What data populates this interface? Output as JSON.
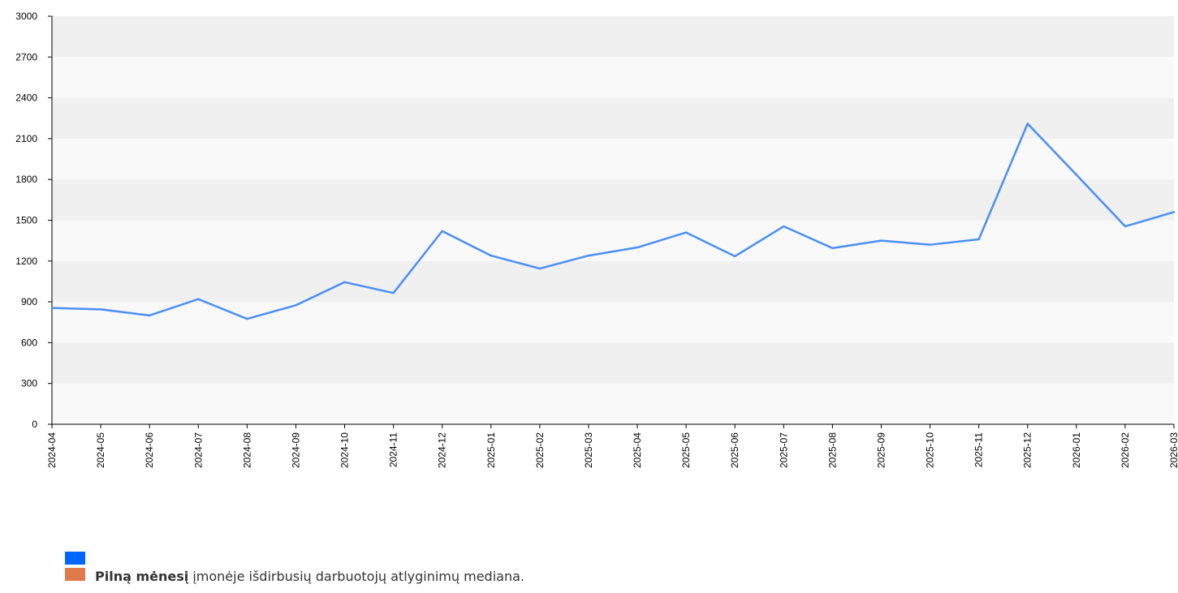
{
  "chart_data": {
    "type": "line",
    "x": [
      "2024-04",
      "2024-05",
      "2024-06",
      "2024-07",
      "2024-08",
      "2024-09",
      "2024-10",
      "2024-11",
      "2024-12",
      "2025-01",
      "2025-02",
      "2025-03",
      "2025-04",
      "2025-05",
      "2025-06",
      "2025-07",
      "2025-08",
      "2025-09",
      "2025-10",
      "2025-11",
      "2025-12",
      "2026-01",
      "2026-02",
      "2026-03"
    ],
    "series": [
      {
        "color": "#4b8ef5",
        "values": [
          855,
          845,
          800,
          920,
          775,
          875,
          1045,
          965,
          1420,
          1240,
          1145,
          1240,
          1300,
          1410,
          1235,
          1455,
          1295,
          1350,
          1320,
          1360,
          2210,
          1835,
          1455,
          1560
        ]
      }
    ],
    "ylim": [
      0,
      3000
    ],
    "yticks": [
      "0",
      "300",
      "600",
      "900",
      "1200",
      "1500",
      "1800",
      "2100",
      "2400",
      "2700",
      "3000"
    ],
    "grid": true,
    "band_colors": [
      "#f9f9f9",
      "#f0f0f0"
    ],
    "axis_color": "#000000"
  },
  "legend": {
    "items": [
      {
        "color": "#0066ff",
        "bold": "",
        "text": ""
      },
      {
        "color": "#e07a4a",
        "bold": "Pilną mėnesį",
        "text": " įmonėje išdirbusių darbuotojų atlyginimų mediana."
      }
    ]
  }
}
